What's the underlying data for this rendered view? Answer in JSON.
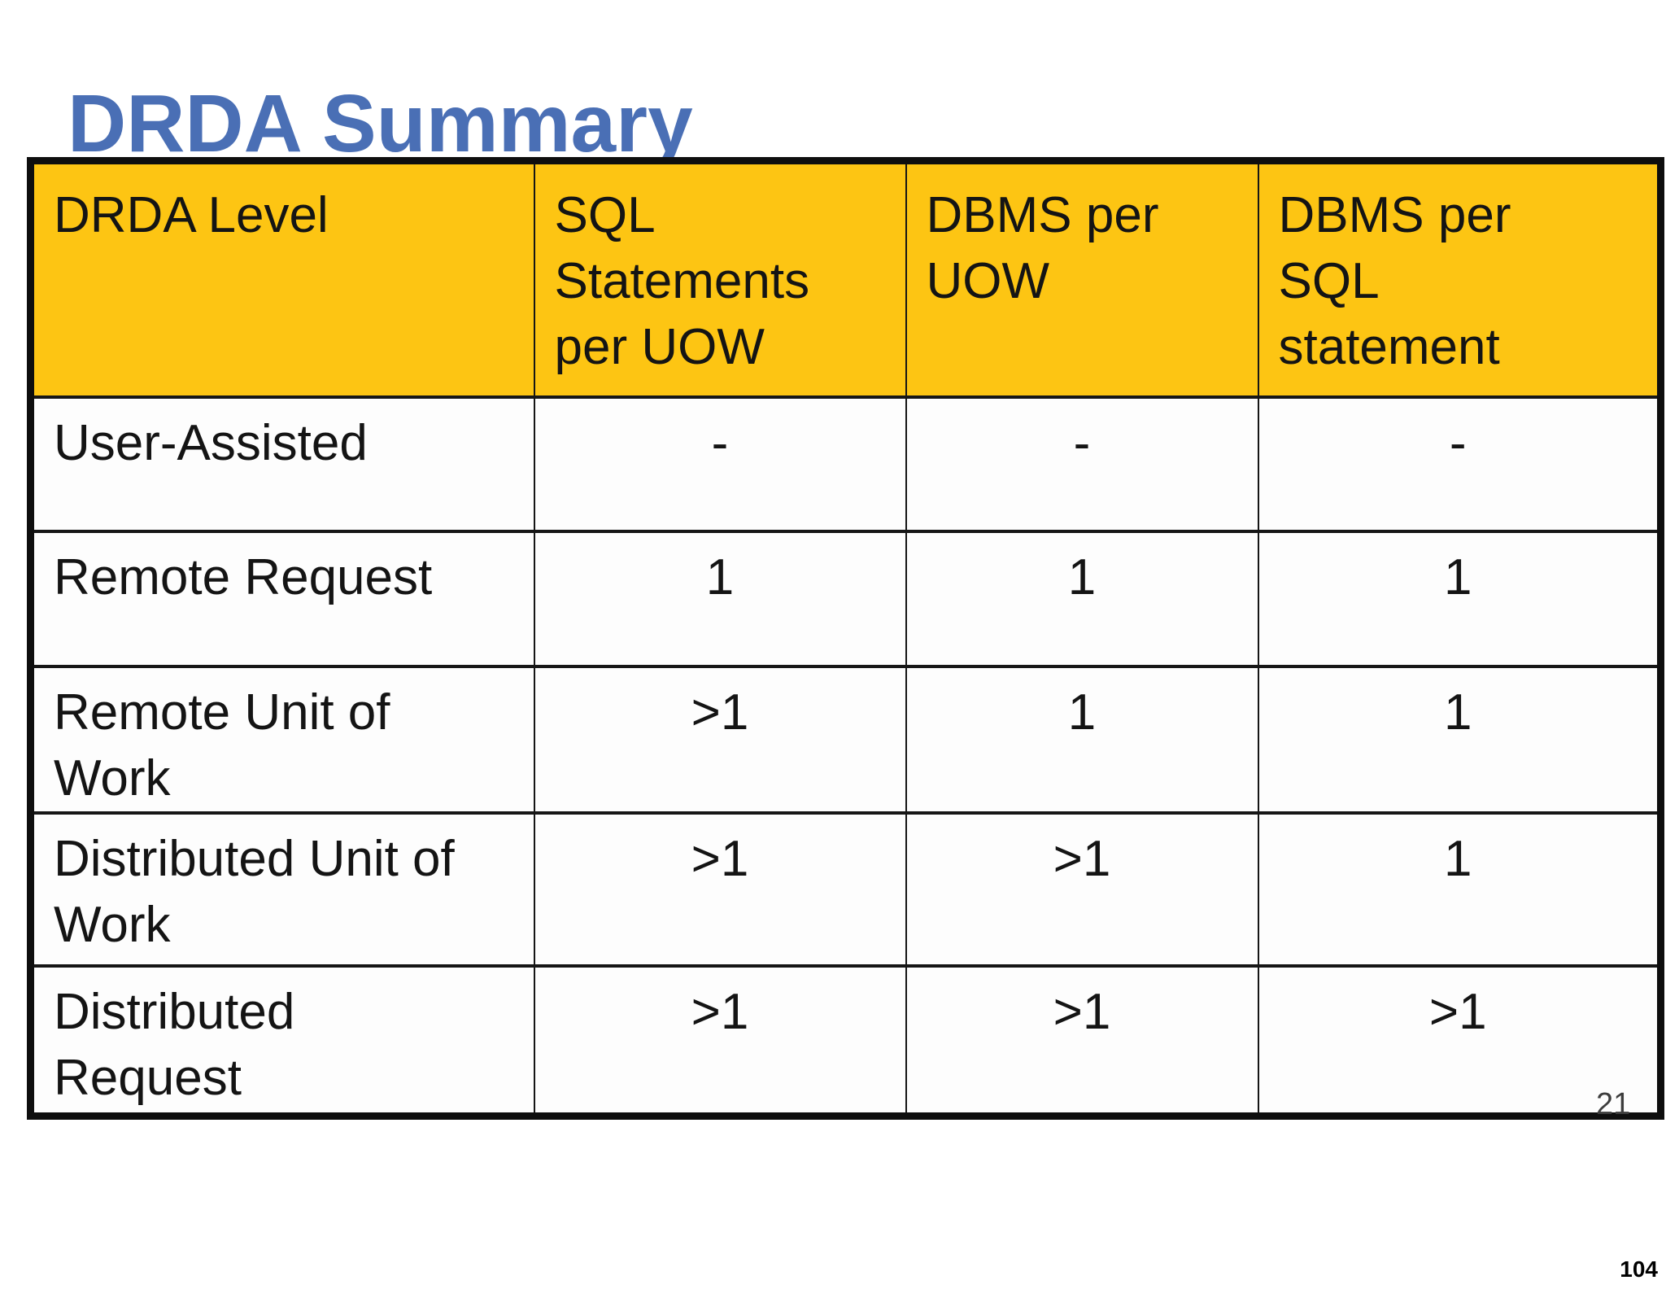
{
  "title": "DRDA Summary",
  "table": {
    "headers": [
      "DRDA Level",
      "SQL\nStatements\nper UOW",
      "DBMS per\nUOW",
      "DBMS per\nSQL\nstatement"
    ],
    "rows": [
      {
        "cells": [
          "User-Assisted",
          "-",
          "-",
          "-"
        ]
      },
      {
        "cells": [
          "Remote Request",
          "1",
          "1",
          "1"
        ]
      },
      {
        "cells": [
          "Remote Unit of\nWork",
          ">1",
          "1",
          "1"
        ]
      },
      {
        "cells": [
          "Distributed Unit of\nWork",
          ">1",
          ">1",
          "1"
        ]
      },
      {
        "cells": [
          "Distributed\nRequest",
          ">1",
          ">1",
          ">1"
        ]
      }
    ]
  },
  "slide_number": "21",
  "page_number": "104",
  "colors": {
    "header_bg": "#FDC513",
    "title_color": "#4A6FB5",
    "border_color": "#0E0E0E",
    "cell_text": "#141414",
    "cell_bg": "#FDFDFD",
    "slide_num_color": "#3D3D3D",
    "page_num_color": "#000000"
  }
}
